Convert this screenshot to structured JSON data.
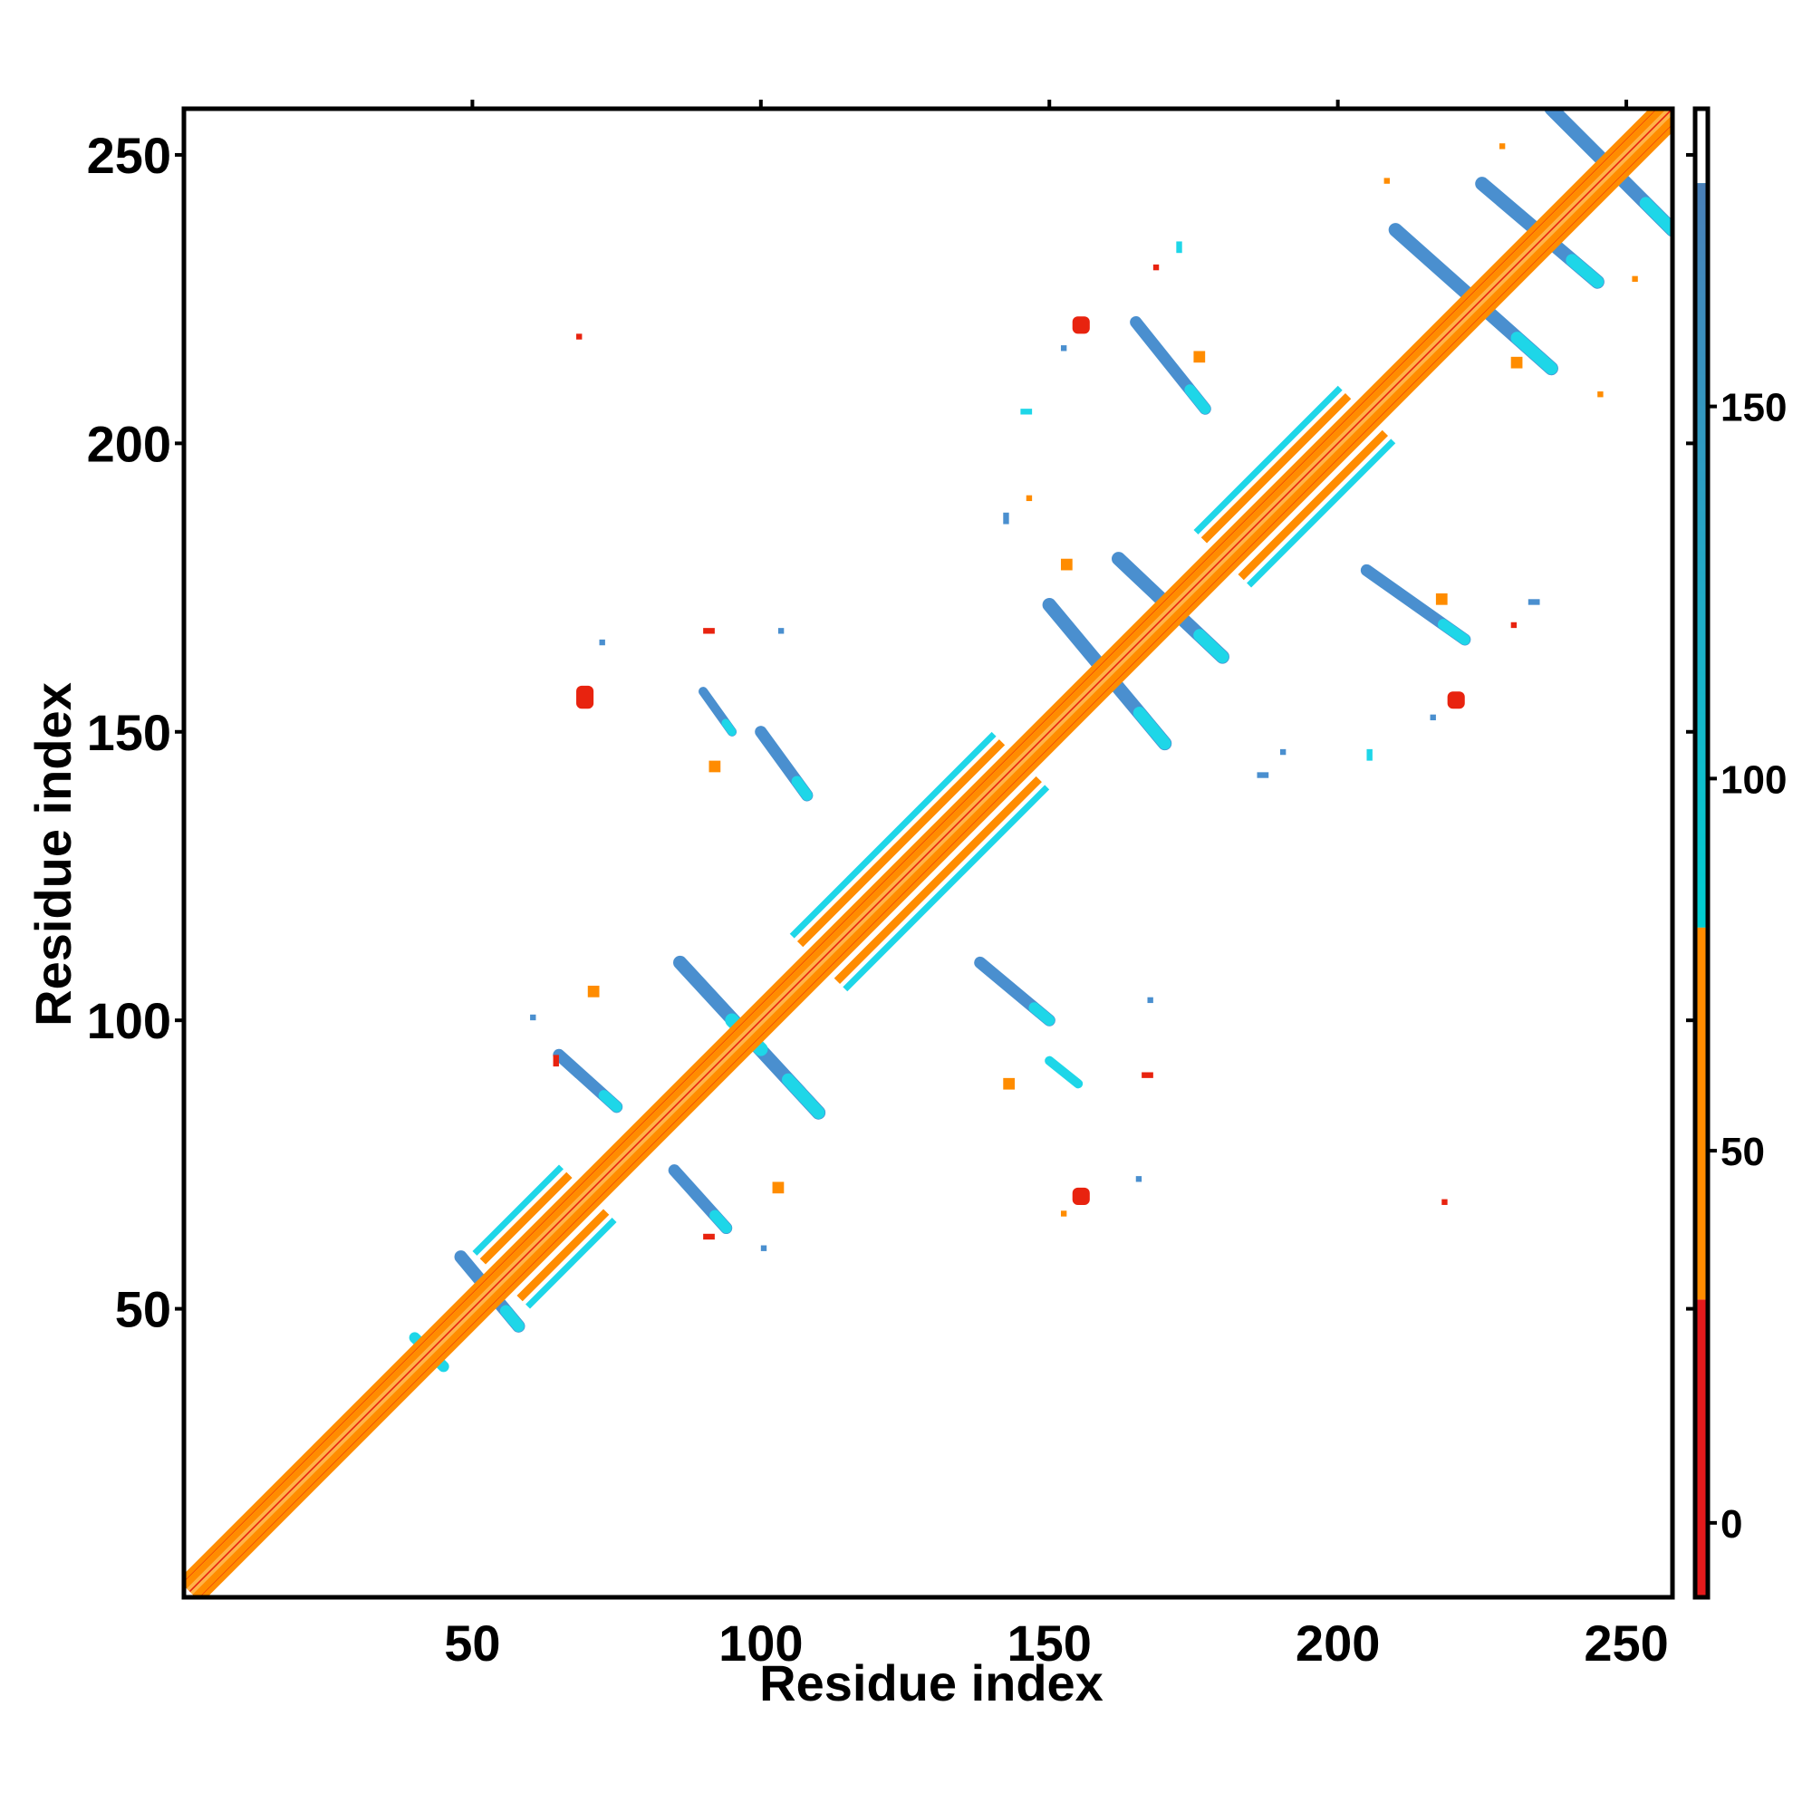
{
  "chart_data": {
    "type": "heatmap",
    "title": "",
    "xlabel": "Residue index",
    "ylabel": "Residue index",
    "xlim": [
      0,
      258
    ],
    "ylim": [
      0,
      258
    ],
    "x_ticks": [
      50,
      100,
      150,
      200,
      250
    ],
    "y_ticks": [
      50,
      100,
      150,
      200,
      250
    ],
    "grid": false,
    "legend": "none",
    "colorbar": {
      "position": "right",
      "range": [
        -10,
        190
      ],
      "ticks": [
        0,
        50,
        100,
        150
      ],
      "bands": [
        {
          "from": -10,
          "to": 30,
          "color": "#e41a1c"
        },
        {
          "from": 30,
          "to": 80,
          "color": "#ff8c00"
        },
        {
          "from": 80,
          "to": 180,
          "color": "#00ced1"
        },
        {
          "from": 180,
          "to": 190,
          "color": "#ffffff"
        }
      ]
    },
    "colors": {
      "red": "#e8230f",
      "orange": "#ff8c00",
      "light_orange": "#ffb347",
      "cyan": "#1ed6e8",
      "steel": "#4a8fcf"
    },
    "diagonal": {
      "from": 1,
      "to": 258,
      "helix_segments": [
        {
          "from": 55,
          "to": 70
        },
        {
          "from": 110,
          "to": 145
        },
        {
          "from": 180,
          "to": 205
        }
      ]
    },
    "strips": [
      {
        "x1": 48,
        "y1": 59,
        "x2": 58,
        "y2": 47,
        "color": "steel",
        "width": 1.4
      },
      {
        "x1": 40,
        "y1": 45,
        "x2": 45,
        "y2": 40,
        "color": "cyan",
        "width": 1.2
      },
      {
        "x1": 86,
        "y1": 110,
        "x2": 110,
        "y2": 84,
        "color": "steel",
        "width": 1.5
      },
      {
        "x1": 95,
        "y1": 100,
        "x2": 100,
        "y2": 95,
        "color": "cyan",
        "width": 1.5
      },
      {
        "x1": 65,
        "y1": 94,
        "x2": 75,
        "y2": 85,
        "color": "steel",
        "width": 1.3
      },
      {
        "x1": 85,
        "y1": 74,
        "x2": 94,
        "y2": 64,
        "color": "steel",
        "width": 1.3
      },
      {
        "x1": 138,
        "y1": 110,
        "x2": 150,
        "y2": 100,
        "color": "steel",
        "width": 1.3
      },
      {
        "x1": 150,
        "y1": 93,
        "x2": 155,
        "y2": 89,
        "color": "cyan",
        "width": 1.0
      },
      {
        "x1": 150,
        "y1": 172,
        "x2": 170,
        "y2": 148,
        "color": "steel",
        "width": 1.5
      },
      {
        "x1": 162,
        "y1": 180,
        "x2": 180,
        "y2": 163,
        "color": "steel",
        "width": 1.5
      },
      {
        "x1": 90,
        "y1": 157,
        "x2": 95,
        "y2": 150,
        "color": "steel",
        "width": 1.0
      },
      {
        "x1": 100,
        "y1": 150,
        "x2": 108,
        "y2": 139,
        "color": "steel",
        "width": 1.3
      },
      {
        "x1": 165,
        "y1": 221,
        "x2": 177,
        "y2": 206,
        "color": "steel",
        "width": 1.3
      },
      {
        "x1": 205,
        "y1": 178,
        "x2": 222,
        "y2": 166,
        "color": "steel",
        "width": 1.3
      },
      {
        "x1": 210,
        "y1": 237,
        "x2": 237,
        "y2": 213,
        "color": "steel",
        "width": 1.5
      },
      {
        "x1": 225,
        "y1": 245,
        "x2": 245,
        "y2": 228,
        "color": "steel",
        "width": 1.5
      },
      {
        "x1": 237,
        "y1": 258,
        "x2": 258,
        "y2": 237,
        "color": "steel",
        "width": 1.5
      }
    ],
    "blobs": [
      {
        "x": 68,
        "y": 154,
        "w": 3,
        "h": 4,
        "color": "red"
      },
      {
        "x": 154,
        "y": 219,
        "w": 3,
        "h": 3,
        "color": "red"
      },
      {
        "x": 154,
        "y": 68,
        "w": 3,
        "h": 3,
        "color": "red"
      },
      {
        "x": 219,
        "y": 154,
        "w": 3,
        "h": 3,
        "color": "red"
      },
      {
        "x": 90,
        "y": 167,
        "w": 2,
        "h": 1,
        "color": "red"
      },
      {
        "x": 90,
        "y": 62,
        "w": 2,
        "h": 1,
        "color": "red"
      },
      {
        "x": 166,
        "y": 90,
        "w": 2,
        "h": 1,
        "color": "red"
      },
      {
        "x": 68,
        "y": 218,
        "w": 1,
        "h": 1,
        "color": "red"
      },
      {
        "x": 218,
        "y": 68,
        "w": 1,
        "h": 1,
        "color": "red"
      },
      {
        "x": 64,
        "y": 92,
        "w": 1,
        "h": 2,
        "color": "red"
      },
      {
        "x": 152,
        "y": 66,
        "w": 1,
        "h": 1,
        "color": "orange"
      },
      {
        "x": 70,
        "y": 104,
        "w": 2,
        "h": 2,
        "color": "orange"
      },
      {
        "x": 102,
        "y": 70,
        "w": 2,
        "h": 2,
        "color": "orange"
      },
      {
        "x": 91,
        "y": 143,
        "w": 2,
        "h": 2,
        "color": "orange"
      },
      {
        "x": 142,
        "y": 88,
        "w": 2,
        "h": 2,
        "color": "orange"
      },
      {
        "x": 152,
        "y": 178,
        "w": 2,
        "h": 2,
        "color": "orange"
      },
      {
        "x": 175,
        "y": 214,
        "w": 2,
        "h": 2,
        "color": "orange"
      },
      {
        "x": 217,
        "y": 172,
        "w": 2,
        "h": 2,
        "color": "orange"
      },
      {
        "x": 230,
        "y": 213,
        "w": 2,
        "h": 2,
        "color": "orange"
      },
      {
        "x": 245,
        "y": 208,
        "w": 1,
        "h": 1,
        "color": "orange"
      },
      {
        "x": 208,
        "y": 245,
        "w": 1,
        "h": 1,
        "color": "orange"
      },
      {
        "x": 228,
        "y": 251,
        "w": 1,
        "h": 1,
        "color": "orange"
      },
      {
        "x": 251,
        "y": 228,
        "w": 1,
        "h": 1,
        "color": "orange"
      },
      {
        "x": 168,
        "y": 230,
        "w": 1,
        "h": 1,
        "color": "red"
      },
      {
        "x": 230,
        "y": 168,
        "w": 1,
        "h": 1,
        "color": "red"
      },
      {
        "x": 72,
        "y": 165,
        "w": 1,
        "h": 1,
        "color": "steel"
      },
      {
        "x": 103,
        "y": 167,
        "w": 1,
        "h": 1,
        "color": "steel"
      },
      {
        "x": 167,
        "y": 103,
        "w": 1,
        "h": 1,
        "color": "steel"
      },
      {
        "x": 165,
        "y": 72,
        "w": 1,
        "h": 1,
        "color": "steel"
      },
      {
        "x": 142,
        "y": 186,
        "w": 1,
        "h": 2,
        "color": "steel"
      },
      {
        "x": 186,
        "y": 142,
        "w": 2,
        "h": 1,
        "color": "steel"
      },
      {
        "x": 145,
        "y": 205,
        "w": 2,
        "h": 1,
        "color": "cyan"
      },
      {
        "x": 205,
        "y": 145,
        "w": 1,
        "h": 2,
        "color": "cyan"
      },
      {
        "x": 172,
        "y": 233,
        "w": 1,
        "h": 2,
        "color": "cyan"
      },
      {
        "x": 233,
        "y": 172,
        "w": 2,
        "h": 1,
        "color": "steel"
      },
      {
        "x": 60,
        "y": 100,
        "w": 1,
        "h": 1,
        "color": "steel"
      },
      {
        "x": 100,
        "y": 60,
        "w": 1,
        "h": 1,
        "color": "steel"
      },
      {
        "x": 190,
        "y": 146,
        "w": 1,
        "h": 1,
        "color": "steel"
      },
      {
        "x": 146,
        "y": 190,
        "w": 1,
        "h": 1,
        "color": "orange"
      },
      {
        "x": 216,
        "y": 152,
        "w": 1,
        "h": 1,
        "color": "steel"
      },
      {
        "x": 152,
        "y": 216,
        "w": 1,
        "h": 1,
        "color": "steel"
      }
    ]
  }
}
